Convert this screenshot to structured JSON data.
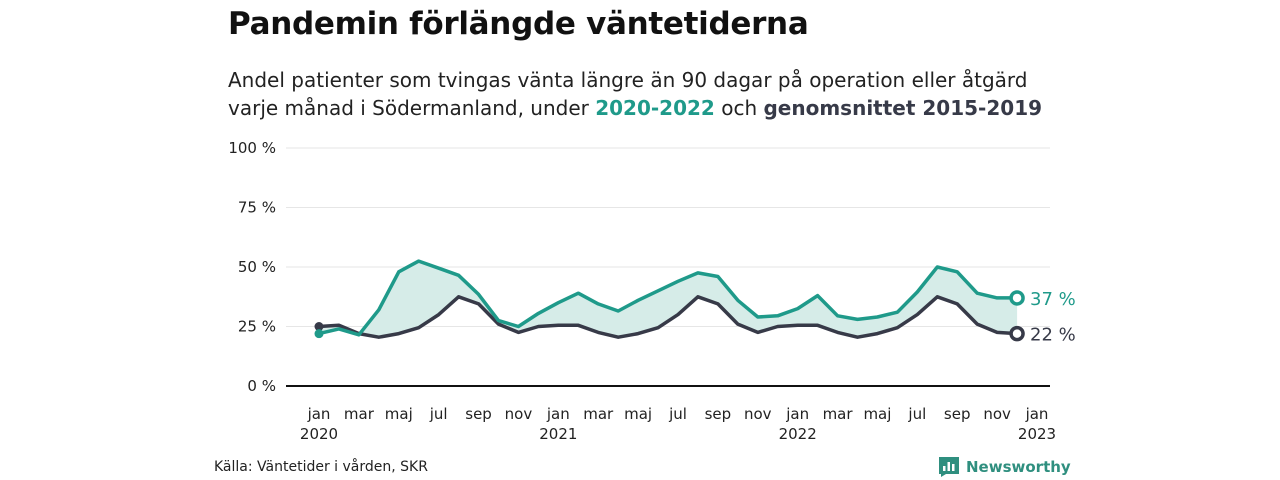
{
  "title": "Pandemin förlängde väntetiderna",
  "subtitle": {
    "line1": "Andel patienter som tvingas vänta längre än 90 dagar på operation eller åtgärd",
    "line2_pre": "varje månad i Södermanland, under ",
    "line2_series1": "2020-2022",
    "line2_mid": " och ",
    "line2_series2": "genomsnittet 2015-2019"
  },
  "source": "Källa: Väntetider i vården, SKR",
  "brand": "Newsworthy",
  "colors": {
    "current": "#1f9a8a",
    "average": "#373a48",
    "fill": "#d6ece8",
    "grid": "#e6e6e6"
  },
  "chart_data": {
    "type": "line",
    "x_start": "2020-01",
    "x_months": [
      "2020-01",
      "2020-02",
      "2020-03",
      "2020-04",
      "2020-05",
      "2020-06",
      "2020-07",
      "2020-08",
      "2020-09",
      "2020-10",
      "2020-11",
      "2020-12",
      "2021-01",
      "2021-02",
      "2021-03",
      "2021-04",
      "2021-05",
      "2021-06",
      "2021-07",
      "2021-08",
      "2021-09",
      "2021-10",
      "2021-11",
      "2021-12",
      "2022-01",
      "2022-02",
      "2022-03",
      "2022-04",
      "2022-05",
      "2022-06",
      "2022-07",
      "2022-08",
      "2022-09",
      "2022-10",
      "2022-11",
      "2022-12"
    ],
    "x_ticks": [
      {
        "label": "jan",
        "year": "2020",
        "i": 0
      },
      {
        "label": "mar",
        "year": "",
        "i": 2
      },
      {
        "label": "maj",
        "year": "",
        "i": 4
      },
      {
        "label": "jul",
        "year": "",
        "i": 6
      },
      {
        "label": "sep",
        "year": "",
        "i": 8
      },
      {
        "label": "nov",
        "year": "",
        "i": 10
      },
      {
        "label": "jan",
        "year": "2021",
        "i": 12
      },
      {
        "label": "mar",
        "year": "",
        "i": 14
      },
      {
        "label": "maj",
        "year": "",
        "i": 16
      },
      {
        "label": "jul",
        "year": "",
        "i": 18
      },
      {
        "label": "sep",
        "year": "",
        "i": 20
      },
      {
        "label": "nov",
        "year": "",
        "i": 22
      },
      {
        "label": "jan",
        "year": "2022",
        "i": 24
      },
      {
        "label": "mar",
        "year": "",
        "i": 26
      },
      {
        "label": "maj",
        "year": "",
        "i": 28
      },
      {
        "label": "jul",
        "year": "",
        "i": 30
      },
      {
        "label": "sep",
        "year": "",
        "i": 32
      },
      {
        "label": "nov",
        "year": "",
        "i": 34
      },
      {
        "label": "jan",
        "year": "2023",
        "i": 36
      }
    ],
    "y_ticks": [
      0,
      25,
      50,
      75,
      100
    ],
    "y_tick_labels": [
      "0 %",
      "25 %",
      "50 %",
      "75 %",
      "100 %"
    ],
    "ylim": [
      0,
      100
    ],
    "grid": true,
    "series": [
      {
        "name": "2020-2022",
        "color": "#1f9a8a",
        "values": [
          22,
          24,
          21.5,
          32,
          48,
          52.5,
          49.5,
          46.5,
          38.5,
          27.5,
          25,
          30.5,
          35,
          39,
          34.5,
          31.5,
          36,
          40,
          44,
          47.5,
          46,
          36,
          29,
          29.5,
          32.5,
          38,
          29.5,
          28,
          29,
          31,
          39.5,
          50,
          48,
          39,
          37,
          37
        ],
        "end_label": "37 %"
      },
      {
        "name": "genomsnittet 2015-2019",
        "color": "#373a48",
        "values": [
          25,
          25.5,
          22,
          20.5,
          22,
          24.5,
          30,
          37.5,
          34.5,
          26,
          22.5,
          25,
          25.5,
          25.5,
          22.5,
          20.5,
          22,
          24.5,
          30,
          37.5,
          34.5,
          26,
          22.5,
          25,
          25.5,
          25.5,
          22.5,
          20.5,
          22,
          24.5,
          30,
          37.5,
          34.5,
          26,
          22.5,
          22
        ],
        "end_label": "22 %"
      }
    ]
  }
}
